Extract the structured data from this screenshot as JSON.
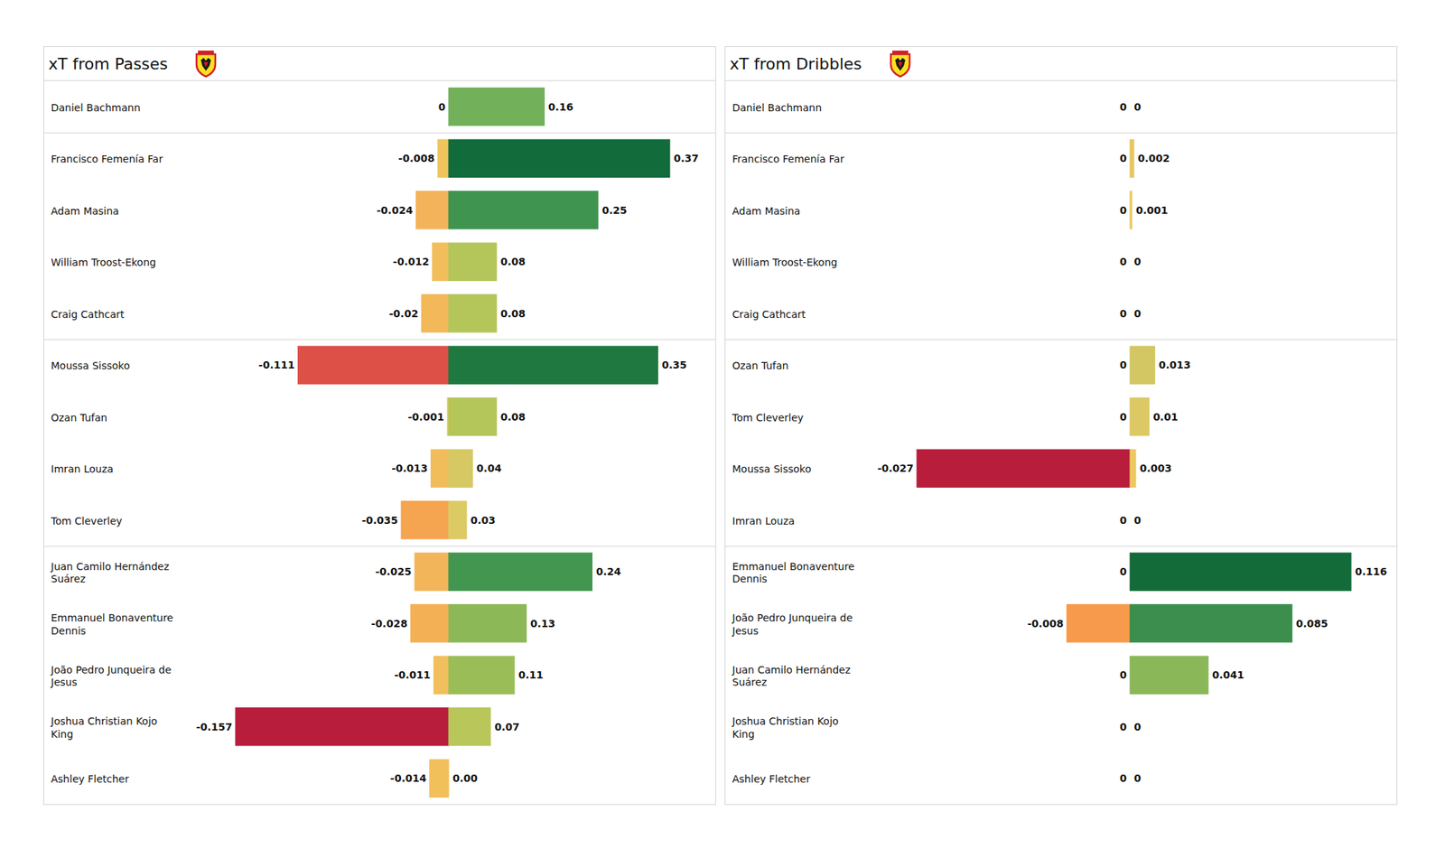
{
  "chart_data": [
    {
      "type": "bar",
      "title": "xT from Passes",
      "orientation": "horizontal",
      "data_labels": true,
      "tick_labels": "y",
      "categories": [
        "Daniel Bachmann",
        "Francisco Femenía Far",
        "Adam Masina",
        "William Troost-Ekong",
        "Craig Cathcart",
        "Moussa Sissoko",
        "Ozan Tufan",
        "Imran Louza",
        "Tom Cleverley",
        "Juan Camilo Hernández\nSuárez",
        "Emmanuel Bonaventure\nDennis",
        "João Pedro Junqueira de\nJesus",
        "Joshua Christian Kojo\nKing",
        "Ashley Fletcher"
      ],
      "xlim": [
        -0.157,
        0.37
      ],
      "series": [
        {
          "values": [
            0,
            -0.008,
            -0.024,
            -0.012,
            -0.02,
            -0.111,
            -0.001,
            -0.013,
            -0.035,
            -0.025,
            -0.028,
            -0.011,
            -0.157,
            -0.014
          ],
          "value_labels": [
            "0",
            "-0.008",
            "-0.024",
            "-0.012",
            "-0.02",
            "-0.111",
            "-0.001",
            "-0.013",
            "-0.035",
            "-0.025",
            "-0.028",
            "-0.011",
            "-0.157",
            "-0.014"
          ],
          "colors": [
            "#f0c45c",
            "#f0c45c",
            "#f3b35a",
            "#f1be5b",
            "#f2b85a",
            "#dc5048",
            "#e6c85f",
            "#f1bd5b",
            "#f5a450",
            "#f3b55a",
            "#f4b055",
            "#f1bf5b",
            "#b81d3c",
            "#f1c05b"
          ]
        },
        {
          "values": [
            0.16,
            0.37,
            0.25,
            0.08,
            0.08,
            0.35,
            0.08,
            0.04,
            0.03,
            0.24,
            0.13,
            0.11,
            0.07,
            0
          ],
          "value_labels": [
            "0.16",
            "0.37",
            "0.25",
            "0.08",
            "0.08",
            "0.35",
            "0.08",
            "0.04",
            "0.03",
            "0.24",
            "0.13",
            "0.11",
            "0.07",
            "0.00"
          ],
          "colors": [
            "#72b05a",
            "#126b3b",
            "#3f944f",
            "#b4c55a",
            "#b4c55a",
            "#1f7840",
            "#b4c55a",
            "#d6c863",
            "#dccb64",
            "#42964f",
            "#8cb858",
            "#9abd58",
            "#b8c65a",
            "#f0c85a"
          ]
        }
      ]
    },
    {
      "type": "bar",
      "title": "xT from Dribbles",
      "orientation": "horizontal",
      "data_labels": true,
      "tick_labels": "y",
      "categories": [
        "Daniel Bachmann",
        "Francisco Femenía Far",
        "Adam Masina",
        "William Troost-Ekong",
        "Craig Cathcart",
        "Ozan Tufan",
        "Tom Cleverley",
        "Moussa Sissoko",
        "Imran Louza",
        "Emmanuel Bonaventure\nDennis",
        "João Pedro Junqueira de\nJesus",
        "Juan Camilo Hernández\nSuárez",
        "Joshua Christian Kojo\nKing",
        "Ashley Fletcher"
      ],
      "xlim": [
        -0.027,
        0.116
      ],
      "series": [
        {
          "values": [
            0,
            0,
            0,
            0,
            0,
            0,
            0,
            -0.027,
            0,
            0,
            -0.008,
            0,
            0,
            0
          ],
          "value_labels": [
            "0",
            "0",
            "0",
            "0",
            "0",
            "0",
            "0",
            "-0.027",
            "0",
            "0",
            "-0.008",
            "0",
            "0",
            "0"
          ],
          "colors": [
            "#e9c85e",
            "#e9c85e",
            "#e9c85e",
            "#e9c85e",
            "#e9c85e",
            "#e9c85e",
            "#e9c85e",
            "#b81d3c",
            "#e9c85e",
            "#e9c85e",
            "#f79a4b",
            "#e9c85e",
            "#e9c85e",
            "#e9c85e"
          ]
        },
        {
          "values": [
            0,
            0.002,
            0.001,
            0,
            0,
            0.013,
            0.01,
            0.003,
            0,
            0.116,
            0.085,
            0.041,
            0,
            0
          ],
          "value_labels": [
            "0",
            "0.002",
            "0.001",
            "0",
            "0",
            "0.013",
            "0.01",
            "0.003",
            "0",
            "0.116",
            "0.085",
            "0.041",
            "0",
            "0"
          ],
          "colors": [
            "#e9c85e",
            "#e6c85f",
            "#e8c85e",
            "#e9c85e",
            "#e9c85e",
            "#d2c763",
            "#dcc964",
            "#ecc85e",
            "#e9c85e",
            "#146b3a",
            "#3b8e4d",
            "#8ab858",
            "#e9c85e",
            "#e9c85e"
          ]
        }
      ]
    }
  ]
}
